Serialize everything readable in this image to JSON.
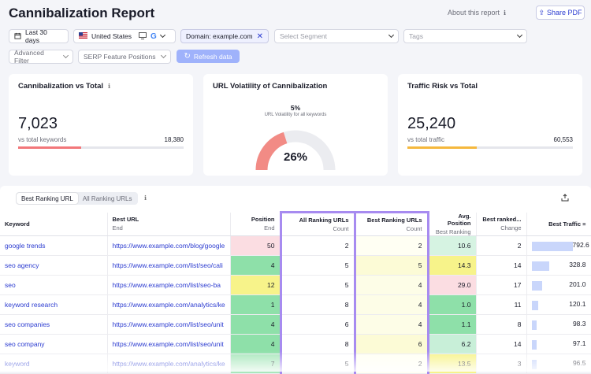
{
  "header": {
    "title": "Cannibalization Report",
    "about_label": "About this report",
    "share_label": "Share PDF"
  },
  "filters": {
    "date_range": "Last 30 days",
    "country": "United States",
    "domain": "Domain: example.com",
    "segment_placeholder": "Select Segment",
    "tags_placeholder": "Tags",
    "advanced_filter": "Advanced Filter",
    "serp_features": "SERP Feature Positions",
    "refresh_label": "Refresh data"
  },
  "cards": {
    "cannibalization": {
      "title": "Cannibalization vs Total",
      "value": "7,023",
      "sub": "vs total keywords",
      "total": "18,380",
      "fraction": 0.382,
      "color": "#f2777a"
    },
    "volatility": {
      "title": "URL Volatility of Cannibalization",
      "pct_top": "5%",
      "caption": "URL Volatility for all keywords",
      "value": "26%",
      "fraction": 0.26,
      "color": "#f28b85"
    },
    "traffic": {
      "title": "Traffic Risk vs Total",
      "value": "25,240",
      "sub": "vs total traffic",
      "total": "60,553",
      "fraction": 0.417,
      "color": "#f5b83d"
    }
  },
  "table": {
    "tabs": [
      "Best Ranking URL",
      "All Ranking URLs"
    ],
    "columns": [
      {
        "title": "Keyword",
        "sub": ""
      },
      {
        "title": "Best URL",
        "sub": "End"
      },
      {
        "title": "Position",
        "sub": "End"
      },
      {
        "title": "All Ranking URLs",
        "sub": "Count"
      },
      {
        "title": "Best Ranking URLs",
        "sub": "Count"
      },
      {
        "title": "Avg. Position",
        "sub": "Best Ranking"
      },
      {
        "title": "Best ranked...",
        "sub": "Change"
      },
      {
        "title": "Best Traffic",
        "sub": ""
      }
    ],
    "rows": [
      {
        "keyword": "google trends",
        "url": "https://www.example.com/blog/google",
        "position": "50",
        "all": "2",
        "best": "2",
        "avg": "10.6",
        "change": "2",
        "traffic": "792.6",
        "traffic_frac": 1.0,
        "pos_color": "#fbdde2",
        "best_color": "#fffff3",
        "avg_color": "#d6f3e2"
      },
      {
        "keyword": "seo agency",
        "url": "https://www.example.com/list/seo/cali",
        "position": "4",
        "all": "5",
        "best": "5",
        "avg": "14.3",
        "change": "14",
        "traffic": "328.8",
        "traffic_frac": 0.415,
        "pos_color": "#8ee0a9",
        "best_color": "#fcfbd6",
        "avg_color": "#f7f38a"
      },
      {
        "keyword": "seo",
        "url": "https://www.example.com/list/seo-ba",
        "position": "12",
        "all": "5",
        "best": "4",
        "avg": "29.0",
        "change": "17",
        "traffic": "201.0",
        "traffic_frac": 0.254,
        "pos_color": "#f7f38a",
        "best_color": "#fdfde7",
        "avg_color": "#fbdde2"
      },
      {
        "keyword": "keyword research",
        "url": "https://www.example.com/analytics/ke",
        "position": "1",
        "all": "8",
        "best": "4",
        "avg": "1.0",
        "change": "11",
        "traffic": "120.1",
        "traffic_frac": 0.152,
        "pos_color": "#8ee0a9",
        "best_color": "#fdfde7",
        "avg_color": "#8ee0a9"
      },
      {
        "keyword": "seo companies",
        "url": "https://www.example.com/list/seo/unit",
        "position": "4",
        "all": "6",
        "best": "4",
        "avg": "1.1",
        "change": "8",
        "traffic": "98.3",
        "traffic_frac": 0.124,
        "pos_color": "#8ee0a9",
        "best_color": "#fdfde7",
        "avg_color": "#8ee0a9"
      },
      {
        "keyword": "seo company",
        "url": "https://www.example.com/list/seo/unit",
        "position": "4",
        "all": "8",
        "best": "6",
        "avg": "6.2",
        "change": "14",
        "traffic": "97.1",
        "traffic_frac": 0.122,
        "pos_color": "#8ee0a9",
        "best_color": "#fcfbd6",
        "avg_color": "#c8efd8"
      },
      {
        "keyword": "keyword",
        "url": "https://www.example.com/analytics/ke",
        "position": "7",
        "all": "5",
        "best": "2",
        "avg": "13.5",
        "change": "3",
        "traffic": "96.5",
        "traffic_frac": 0.12,
        "pos_color": "#a9e7bc",
        "best_color": "#fffff3",
        "avg_color": "#f7f38a"
      }
    ]
  }
}
